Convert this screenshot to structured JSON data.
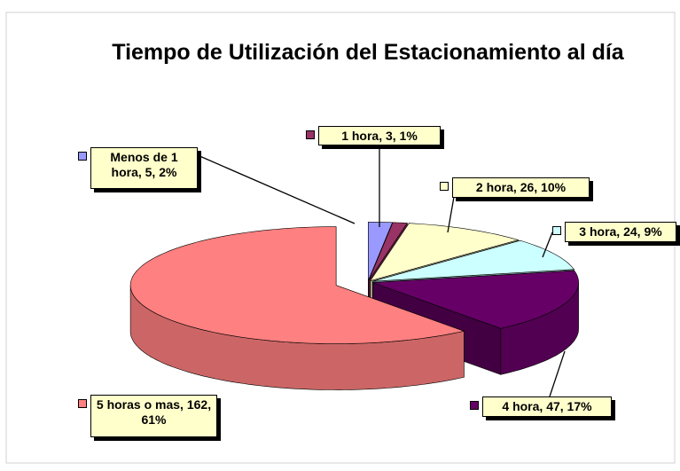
{
  "chart_data": {
    "type": "pie3d",
    "title": "Tiempo de Utilización del Estacionamiento al día",
    "categories": [
      "Menos de 1 hora",
      "1 hora",
      "2 hora",
      "3 hora",
      "4 hora",
      "5 horas o mas"
    ],
    "values": [
      5,
      3,
      26,
      24,
      47,
      162
    ],
    "value_labels": [
      "Menos de 1 hora, 5, 2%",
      "1 hora, 3, 1%",
      "2 hora, 26, 10%",
      "3 hora, 24, 9%",
      "4 hora, 47, 17%",
      "5 horas o mas, 162, 61%"
    ],
    "colors": [
      "#9999ff",
      "#993366",
      "#ffffcc",
      "#ccffff",
      "#660066",
      "#ff8080"
    ],
    "exploded": 5
  }
}
